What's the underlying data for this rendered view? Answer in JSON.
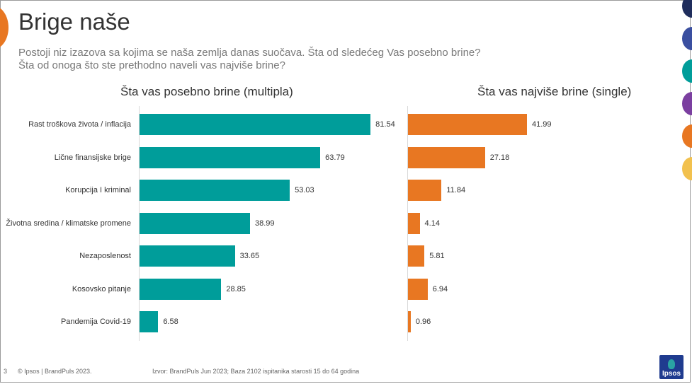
{
  "slide": {
    "title": "Brige naše",
    "subtitle_lines": [
      "Postoji niz izazova sa kojima se naša zemlja danas suočava.  Šta od sledećeg Vas posebno brine?",
      "Šta od onoga što ste prethodno naveli vas najviše brine?"
    ],
    "page_number": "3",
    "footer_left": "© Ipsos | BrandPuls 2023.",
    "footer_source": "Izvor: BrandPuls Jun 2023; Baza 2102 ispitanika starosti 15 do 64 godina",
    "logo_text": "Ipsos",
    "side_dot_colors": [
      "#1f2d5c",
      "#3a4fa0",
      "#009D9A",
      "#7b3fa0",
      "#E87722",
      "#F2C14E"
    ]
  },
  "chart_data": [
    {
      "type": "bar",
      "orientation": "horizontal",
      "title": "Šta vas posebno brine (multipla)",
      "categories": [
        "Rast troškova života / inflacija",
        "Lične finansijske brige",
        "Korupcija I kriminal",
        "Životna sredina / klimatske promene",
        "Nezaposlenost",
        "Kosovsko pitanje",
        "Pandemija Covid-19"
      ],
      "values": [
        81.54,
        63.79,
        53.03,
        38.99,
        33.65,
        28.85,
        6.58
      ],
      "value_labels": [
        "81.54",
        "63.79",
        "53.03",
        "38.99",
        "33.65",
        "28.85",
        "6.58"
      ],
      "color": "#009D9A",
      "xlim": [
        0,
        100
      ]
    },
    {
      "type": "bar",
      "orientation": "horizontal",
      "title": "Šta vas najviše brine (single)",
      "categories": [
        "Rast troškova života / inflacija",
        "Lične finansijske brige",
        "Korupcija I kriminal",
        "Životna sredina / klimatske promene",
        "Nezaposlenost",
        "Kosovsko pitanje",
        "Pandemija Covid-19"
      ],
      "values": [
        41.99,
        27.18,
        11.84,
        4.14,
        5.81,
        6.94,
        0.96
      ],
      "value_labels": [
        "41.99",
        "27.18",
        "11.84",
        "4.14",
        "5.81",
        "6.94",
        "0.96"
      ],
      "color": "#E87722",
      "xlim": [
        0,
        100
      ]
    }
  ]
}
